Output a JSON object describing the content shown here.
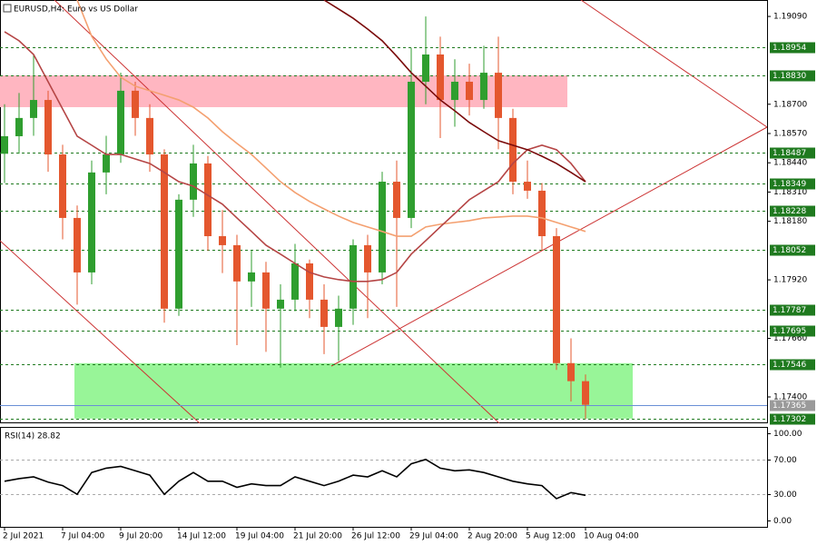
{
  "chart_data": {
    "type": "candlestick",
    "title": "EURUSD,H4:  Euro vs US Dollar",
    "categories": [
      "2 Jul 2021",
      null,
      null,
      null,
      "7 Jul 04:00",
      null,
      null,
      null,
      "9 Jul 20:00",
      null,
      null,
      null,
      "14 Jul 12:00",
      null,
      null,
      null,
      "19 Jul 04:00",
      null,
      null,
      null,
      "21 Jul 20:00",
      null,
      null,
      null,
      "26 Jul 12:00",
      null,
      null,
      null,
      "29 Jul 04:00",
      null,
      null,
      null,
      "2 Aug 20:00",
      null,
      null,
      null,
      "5 Aug 12:00",
      null,
      null,
      null,
      "10 Aug 04:00"
    ],
    "open": [
      1.1848,
      1.18558,
      1.18639,
      1.18719,
      1.18477,
      1.18195,
      1.17953,
      1.18397,
      1.18477,
      1.1876,
      1.18639,
      1.18477,
      1.17792,
      1.18276,
      1.18437,
      1.18114,
      1.18074,
      1.17913,
      1.17953,
      1.17792,
      1.17832,
      1.17993,
      1.17832,
      1.17711,
      1.17792,
      1.18074,
      1.17953,
      1.18356,
      1.18195,
      1.188,
      1.18921,
      1.18719,
      1.188,
      1.18719,
      1.1884,
      1.18639,
      1.18356,
      1.18316,
      1.18114,
      1.1755,
      1.1747
    ],
    "high": [
      1.187,
      1.1875,
      1.18921,
      1.1876,
      1.1852,
      1.1825,
      1.1845,
      1.1856,
      1.1884,
      1.188,
      1.187,
      1.185,
      1.183,
      1.1852,
      1.1847,
      1.1823,
      1.1812,
      1.1805,
      1.18,
      1.179,
      1.1808,
      1.1801,
      1.179,
      1.1785,
      1.181,
      1.1812,
      1.184,
      1.1845,
      1.1895,
      1.1909,
      1.19,
      1.189,
      1.1888,
      1.1896,
      1.19,
      1.1868,
      1.1845,
      1.1835,
      1.1815,
      1.1766,
      1.175
    ],
    "low": [
      1.1835,
      1.1848,
      1.1856,
      1.184,
      1.181,
      1.1781,
      1.179,
      1.183,
      1.1844,
      1.1856,
      1.184,
      1.1773,
      1.1776,
      1.182,
      1.1805,
      1.1795,
      1.1763,
      1.178,
      1.176,
      1.1753,
      1.1778,
      1.1775,
      1.1759,
      1.1756,
      1.1772,
      1.1775,
      1.179,
      1.178,
      1.1815,
      1.187,
      1.1855,
      1.186,
      1.1865,
      1.1868,
      1.185,
      1.183,
      1.1828,
      1.1805,
      1.1752,
      1.1738,
      1.17302
    ],
    "close": [
      1.18558,
      1.18639,
      1.18719,
      1.18477,
      1.18195,
      1.17953,
      1.18397,
      1.18477,
      1.1876,
      1.18639,
      1.18477,
      1.17792,
      1.18276,
      1.18437,
      1.18114,
      1.18074,
      1.17913,
      1.17953,
      1.17792,
      1.17832,
      1.17993,
      1.17832,
      1.17711,
      1.17792,
      1.18074,
      1.17953,
      1.18356,
      1.18195,
      1.188,
      1.18921,
      1.18719,
      1.188,
      1.18719,
      1.1884,
      1.18639,
      1.18356,
      1.18316,
      1.18114,
      1.1755,
      1.1747,
      1.17365
    ],
    "up_color": "#2f9e2f",
    "down_color": "#e4572e",
    "ylim": [
      1.17287,
      1.19163
    ],
    "yticks": [
      {
        "value": 1.1909,
        "label": "1.19090"
      },
      {
        "value": 1.187,
        "label": "1.18700"
      },
      {
        "value": 1.1857,
        "label": "1.18570"
      },
      {
        "value": 1.1844,
        "label": "1.18440"
      },
      {
        "value": 1.1831,
        "label": "1.18310"
      },
      {
        "value": 1.1818,
        "label": "1.18180"
      },
      {
        "value": 1.1792,
        "label": "1.17920"
      },
      {
        "value": 1.1766,
        "label": "1.17660"
      },
      {
        "value": 1.174,
        "label": "1.17400"
      }
    ],
    "levels": [
      {
        "value": 1.18954,
        "label": "1.18954"
      },
      {
        "value": 1.1883,
        "label": "1.18830"
      },
      {
        "value": 1.18487,
        "label": "1.18487"
      },
      {
        "value": 1.18349,
        "label": "1.18349"
      },
      {
        "value": 1.18228,
        "label": "1.18228"
      },
      {
        "value": 1.18052,
        "label": "1.18052"
      },
      {
        "value": 1.17787,
        "label": "1.17787"
      },
      {
        "value": 1.17695,
        "label": "1.17695"
      },
      {
        "value": 1.17546,
        "label": "1.17546"
      },
      {
        "value": 1.17302,
        "label": "1.17302"
      }
    ],
    "level_color": "#1f7a1f",
    "current_price": {
      "value": 1.17365,
      "label": "1.17365"
    },
    "zones": [
      {
        "from": 1.18687,
        "to": 1.18828,
        "color": "#ffb6c1"
      },
      {
        "from": 1.17304,
        "to": 1.1755,
        "color": "#98f598"
      }
    ],
    "moving_averages": [
      {
        "color": "#f4a070",
        "values": [
          null,
          null,
          null,
          null,
          null,
          1.19163,
          1.19002,
          1.18901,
          1.1882,
          1.1878,
          1.1876,
          1.1874,
          1.18719,
          1.18687,
          1.18639,
          1.18578,
          1.18526,
          1.18477,
          1.18417,
          1.18356,
          1.18308,
          1.18268,
          1.18235,
          1.18203,
          1.18175,
          1.18155,
          1.18135,
          1.18114,
          1.18114,
          1.18155,
          1.18167,
          1.18175,
          1.18183,
          1.18195,
          1.18199,
          1.18203,
          1.18203,
          1.18195,
          1.18175,
          1.18155,
          1.18135
        ]
      },
      {
        "color": "#b54545",
        "values": [
          1.19022,
          1.18982,
          1.18921,
          1.188,
          1.18679,
          1.18558,
          1.18518,
          1.18477,
          1.18477,
          1.18457,
          1.18437,
          1.18397,
          1.18356,
          1.18336,
          1.18296,
          1.18256,
          1.18195,
          1.18135,
          1.18074,
          1.18034,
          1.17993,
          1.17953,
          1.17933,
          1.17921,
          1.17913,
          1.17913,
          1.17921,
          1.17953,
          1.18034,
          1.18094,
          1.18155,
          1.18215,
          1.18276,
          1.18316,
          1.18356,
          1.18437,
          1.18498,
          1.18518,
          1.18498,
          1.18437,
          1.18356
        ]
      },
      {
        "color": "#7a0a0a",
        "values": [
          null,
          null,
          null,
          null,
          null,
          null,
          null,
          null,
          null,
          null,
          null,
          null,
          null,
          null,
          null,
          null,
          null,
          null,
          null,
          null,
          null,
          null,
          1.19163,
          1.19123,
          1.19082,
          1.19034,
          1.18982,
          1.18913,
          1.1884,
          1.1878,
          1.18719,
          1.18671,
          1.18619,
          1.18578,
          1.18538,
          1.18518,
          1.18498,
          1.18469,
          1.18437,
          1.18397,
          1.18356
        ]
      }
    ],
    "indicator": {
      "label": "RSI(14) 28.82",
      "values": [
        45,
        48,
        50,
        44,
        40,
        30,
        55,
        60,
        62,
        57,
        52,
        30,
        45,
        55,
        45,
        45,
        38,
        42,
        40,
        40,
        50,
        45,
        40,
        45,
        52,
        50,
        57,
        50,
        65,
        70,
        60,
        57,
        58,
        55,
        50,
        45,
        42,
        40,
        25,
        32,
        28.82
      ],
      "ylim": [
        -7.3,
        107.3
      ],
      "yticks": [
        {
          "value": 100,
          "label": "100.00"
        },
        {
          "value": 70,
          "label": "70.00"
        },
        {
          "value": 30,
          "label": "30.00"
        },
        {
          "value": 0,
          "label": "0.00"
        }
      ]
    }
  }
}
